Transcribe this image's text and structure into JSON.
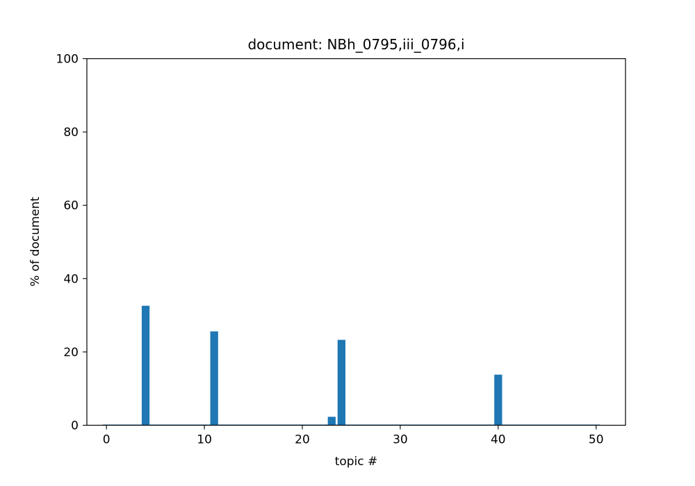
{
  "chart_data": {
    "type": "bar",
    "title": "document: NBh_0795,iii_0796,i",
    "xlabel": "topic #",
    "ylabel": "% of document",
    "xlim": [
      -2,
      53
    ],
    "ylim": [
      0,
      100
    ],
    "xticks": [
      0,
      10,
      20,
      30,
      40,
      50
    ],
    "yticks": [
      0,
      20,
      40,
      60,
      80,
      100
    ],
    "bar_color": "#1f77b4",
    "grid": false,
    "topics": [
      0,
      1,
      2,
      3,
      4,
      5,
      6,
      7,
      8,
      9,
      10,
      11,
      12,
      13,
      14,
      15,
      16,
      17,
      18,
      19,
      20,
      21,
      22,
      23,
      24,
      25,
      26,
      27,
      28,
      29,
      30,
      31,
      32,
      33,
      34,
      35,
      36,
      37,
      38,
      39,
      40,
      41,
      42,
      43,
      44,
      45,
      46,
      47,
      48,
      49,
      50
    ],
    "values": [
      0,
      0,
      0,
      0,
      32.6,
      0,
      0,
      0,
      0,
      0,
      0,
      25.6,
      0,
      0,
      0,
      0,
      0,
      0,
      0,
      0,
      0,
      0,
      0,
      2.3,
      23.3,
      0,
      0,
      0,
      0,
      0,
      0,
      0,
      0,
      0,
      0,
      0,
      0,
      0,
      0,
      0,
      13.8,
      0,
      0,
      0,
      0,
      0,
      0,
      0,
      0,
      0,
      0
    ]
  }
}
